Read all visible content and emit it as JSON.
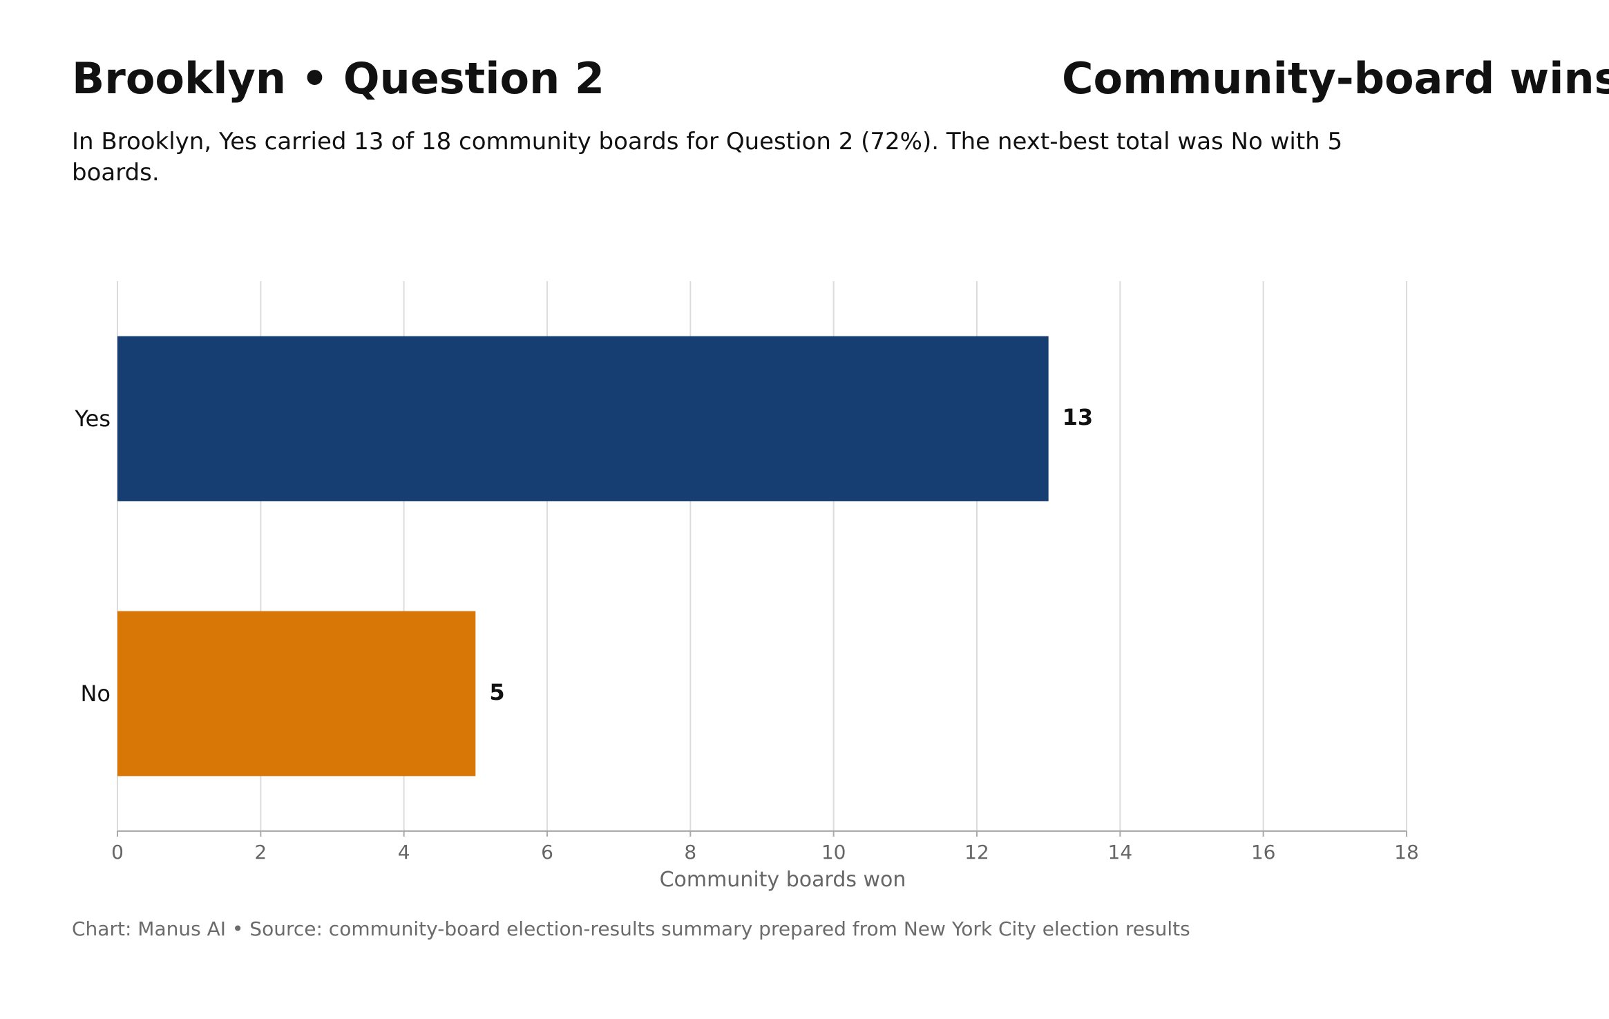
{
  "header": {
    "title_left": "Brooklyn • Question 2",
    "title_right": "Community-board wins",
    "subtitle": "In Brooklyn, Yes carried 13 of 18 community boards for Question 2 (72%). The next-best total was No with 5 boards."
  },
  "footer": {
    "credit": "Chart: Manus AI • Source: community-board election-results summary prepared from New York City election results"
  },
  "chart_data": {
    "type": "bar",
    "orientation": "horizontal",
    "categories": [
      "Yes",
      "No"
    ],
    "values": [
      13,
      5
    ],
    "value_labels": [
      "13",
      "5"
    ],
    "colors": [
      "#173e73",
      "#d97706"
    ],
    "xlabel": "Community boards won",
    "ylabel": "",
    "xlim": [
      0,
      18
    ],
    "xticks": [
      0,
      2,
      4,
      6,
      8,
      10,
      12,
      14,
      16,
      18
    ],
    "grid": "vertical",
    "legend": "none"
  }
}
